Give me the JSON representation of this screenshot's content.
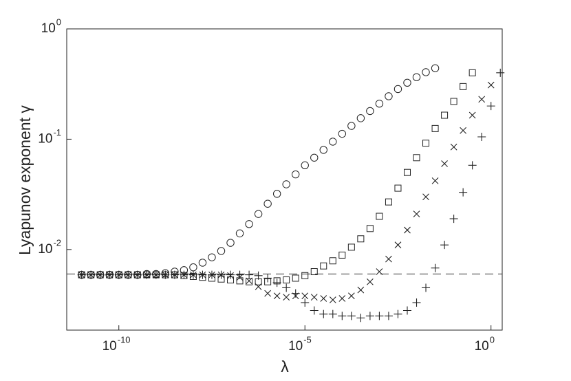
{
  "chart_data": {
    "type": "scatter",
    "x_label": "λ",
    "y_label": "Lyapunov exponent γ",
    "x_log": true,
    "y_log": true,
    "xlim": [
      3.98e-12,
      2.0
    ],
    "ylim": [
      0.00186,
      1
    ],
    "xticks": [
      {
        "value": 1e-10,
        "label": "10",
        "exponent": "-10"
      },
      {
        "value": 1e-05,
        "label": "10",
        "exponent": "-5"
      },
      {
        "value": 1,
        "label": "10",
        "exponent": "0"
      }
    ],
    "yticks": [
      {
        "value": 0.01,
        "label": "10",
        "exponent": "-2"
      },
      {
        "value": 0.1,
        "label": "10",
        "exponent": "-1"
      },
      {
        "value": 1,
        "label": "10",
        "exponent": "0"
      }
    ],
    "reference_line": 0.006,
    "x": [
      1e-11,
      1.778e-11,
      3.162e-11,
      5.623e-11,
      1e-10,
      1.778e-10,
      3.162e-10,
      5.623e-10,
      1e-09,
      1.778e-09,
      3.162e-09,
      5.623e-09,
      1e-08,
      1.778e-08,
      3.162e-08,
      5.623e-08,
      1e-07,
      1.778e-07,
      3.162e-07,
      5.623e-07,
      1e-06,
      1.778e-06,
      3.162e-06,
      5.623e-06,
      1e-05,
      1.778e-05,
      3.162e-05,
      5.623e-05,
      0.0001,
      0.0001778,
      0.0003162,
      0.0005623,
      0.001,
      0.001778,
      0.003162,
      0.005623,
      0.01,
      0.01778,
      0.03162,
      0.05623,
      0.1,
      0.1778,
      0.3162,
      0.5623,
      1,
      1.778
    ],
    "series": [
      {
        "marker": "circle",
        "color": "#222222",
        "values": [
          0.0059,
          0.0059,
          0.0059,
          0.0059,
          0.0059,
          0.0059,
          0.0059,
          0.006,
          0.006,
          0.0061,
          0.0063,
          0.0065,
          0.0069,
          0.0076,
          0.0085,
          0.0097,
          0.0115,
          0.014,
          0.017,
          0.021,
          0.026,
          0.032,
          0.039,
          0.048,
          0.058,
          0.068,
          0.08,
          0.095,
          0.112,
          0.132,
          0.155,
          0.18,
          0.21,
          0.245,
          0.285,
          0.325,
          0.365,
          0.405,
          0.44,
          null,
          null,
          null,
          null,
          null,
          null,
          null
        ]
      },
      {
        "marker": "square",
        "color": "#222222",
        "values": [
          0.0059,
          0.0059,
          0.0059,
          0.0059,
          0.0059,
          0.0059,
          0.0059,
          0.0059,
          0.0059,
          0.0059,
          0.0059,
          0.0058,
          0.0057,
          0.0056,
          0.0055,
          0.0054,
          0.0053,
          0.0052,
          0.0051,
          0.0051,
          0.0051,
          0.0052,
          0.0053,
          0.0055,
          0.0058,
          0.0063,
          0.0071,
          0.0079,
          0.0089,
          0.0105,
          0.0125,
          0.0155,
          0.02,
          0.027,
          0.036,
          0.05,
          0.068,
          0.092,
          0.125,
          0.165,
          0.22,
          0.3,
          0.4,
          null,
          null,
          null
        ]
      },
      {
        "marker": "x",
        "color": "#222222",
        "values": [
          0.0059,
          0.0059,
          0.0059,
          0.0059,
          0.0059,
          0.0059,
          0.0059,
          0.0059,
          0.0059,
          0.0059,
          0.0059,
          0.0059,
          0.0059,
          0.0059,
          0.0059,
          0.0059,
          0.0058,
          0.0056,
          0.0052,
          0.0046,
          0.004,
          0.0038,
          0.0037,
          0.0038,
          0.0038,
          0.0037,
          0.0036,
          0.0035,
          0.0036,
          0.0038,
          0.0043,
          0.0051,
          0.0063,
          0.0082,
          0.011,
          0.015,
          0.021,
          0.03,
          0.042,
          0.06,
          0.085,
          0.12,
          0.165,
          0.23,
          0.31,
          null
        ]
      },
      {
        "marker": "plus",
        "color": "#222222",
        "values": [
          0.0059,
          0.0059,
          0.0059,
          0.0059,
          0.0059,
          0.0059,
          0.0059,
          0.0059,
          0.0059,
          0.0059,
          0.0059,
          0.0059,
          0.0059,
          0.0059,
          0.0059,
          0.0059,
          0.0059,
          0.0059,
          0.0059,
          0.0058,
          0.0055,
          0.005,
          0.0045,
          0.004,
          0.0033,
          0.0028,
          0.0026,
          0.0026,
          0.0025,
          0.0025,
          0.0024,
          0.0025,
          0.0025,
          0.0025,
          0.0026,
          0.0028,
          0.0033,
          0.0045,
          0.0068,
          0.011,
          0.019,
          0.033,
          0.058,
          0.105,
          0.2,
          0.4
        ]
      }
    ]
  }
}
